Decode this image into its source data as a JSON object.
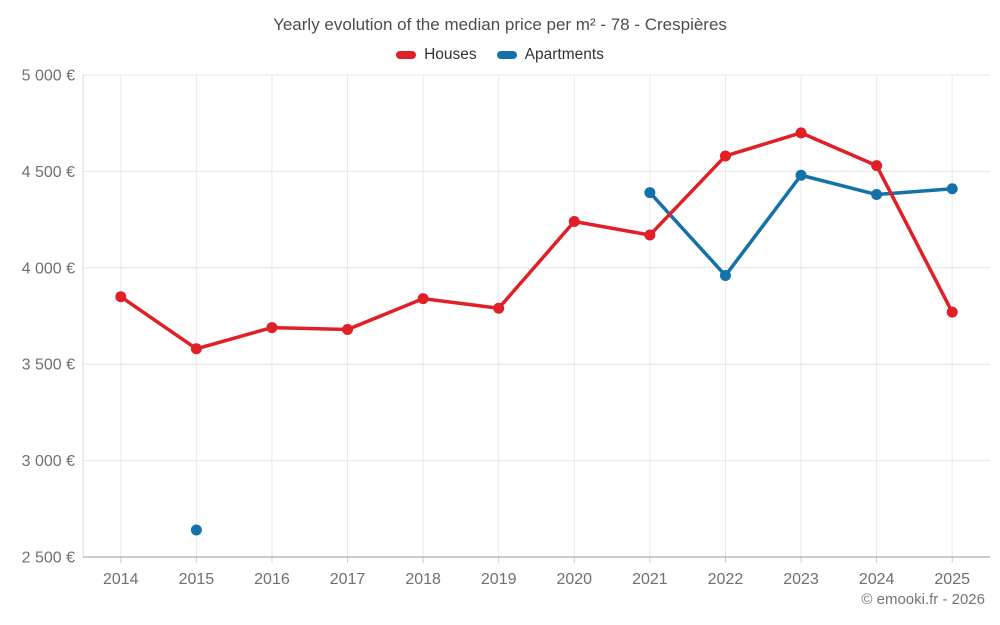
{
  "chart_data": {
    "type": "line",
    "title": "Yearly evolution of the median price per m² - 78 - Crespières",
    "categories": [
      "2014",
      "2015",
      "2016",
      "2017",
      "2018",
      "2019",
      "2020",
      "2021",
      "2022",
      "2023",
      "2024",
      "2025"
    ],
    "series": [
      {
        "name": "Houses",
        "color": "#e01f26",
        "values": [
          3850,
          3580,
          3690,
          3680,
          3840,
          3790,
          4240,
          4170,
          4580,
          4700,
          4530,
          3770
        ]
      },
      {
        "name": "Apartments",
        "color": "#1272a9",
        "values": [
          null,
          2640,
          null,
          null,
          null,
          null,
          null,
          4390,
          3960,
          4480,
          4380,
          4410
        ]
      }
    ],
    "xlabel": "",
    "ylabel": "",
    "ylim": [
      2500,
      5000
    ],
    "ytick_step": 500,
    "ytick_labels": [
      "2 500 €",
      "3 000 €",
      "3 500 €",
      "4 000 €",
      "4 500 €",
      "5 000 €"
    ],
    "grid": true,
    "legend_position": "top"
  },
  "footer": {
    "copyright": "© emooki.fr - 2026"
  }
}
